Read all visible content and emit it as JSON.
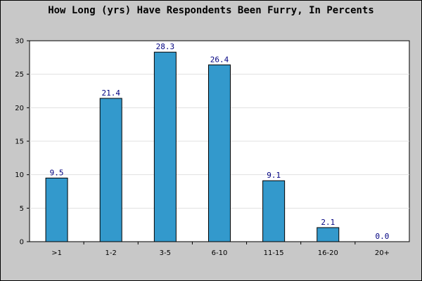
{
  "chart_data": {
    "type": "bar",
    "title": "How Long (yrs) Have Respondents Been Furry, In Percents",
    "categories": [
      ">1",
      "1-2",
      "3-5",
      "6-10",
      "11-15",
      "16-20",
      "20+"
    ],
    "values": [
      9.5,
      21.4,
      28.3,
      26.4,
      9.1,
      2.1,
      0.0
    ],
    "value_labels": [
      "9.5",
      "21.4",
      "28.3",
      "26.4",
      "9.1",
      "2.1",
      "0.0"
    ],
    "xlabel": "",
    "ylabel": "",
    "ylim": [
      0,
      30
    ],
    "yticks": [
      0,
      5,
      10,
      15,
      20,
      25,
      30
    ],
    "grid": true,
    "colors": {
      "bar": "#3399cc",
      "bar_border": "#000000",
      "value_label": "#000080",
      "plot_background": "#ffffff",
      "frame_background": "#c8c8c8",
      "grid": "#e0e0e0"
    }
  }
}
